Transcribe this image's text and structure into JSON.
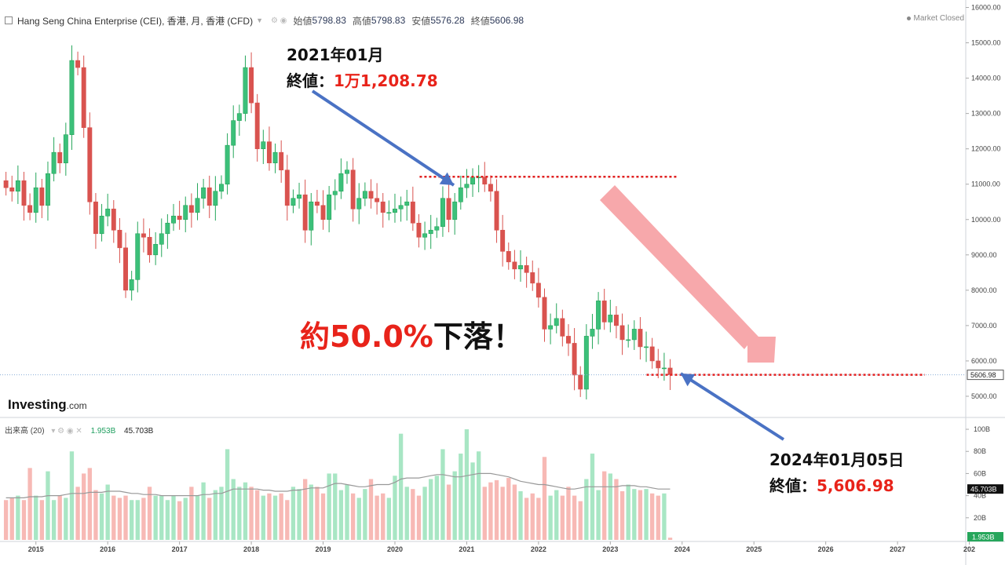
{
  "header": {
    "title": "Hang Seng China Enterprise (CEI), 香港, 月, 香港 (CFD)",
    "open_label": "始値",
    "open_value": "5798.83",
    "high_label": "高値",
    "high_value": "5798.83",
    "low_label": "安値",
    "low_value": "5576.28",
    "close_label": "終値",
    "close_value": "5606.98",
    "market_status": "Market Closed"
  },
  "logo": {
    "text": "Investing",
    "suffix": ".com"
  },
  "volume_header": {
    "label": "出来高 (20)",
    "value_last": "1.953B",
    "value_ma": "45.703B"
  },
  "annotations": {
    "top_date": "2021年01月",
    "top_close_label": "終値：",
    "top_close_value": "1万1,208.78",
    "bottom_date": "2024年01月05日",
    "bottom_close_label": "終値：",
    "bottom_close_value": "5,606.98",
    "drop_prefix": "約",
    "drop_value": "50.0%",
    "drop_suffix": "下落！"
  },
  "colors": {
    "up": "#26a65b",
    "up_fill": "#3cc07a",
    "down": "#d9534f",
    "vol_up": "#a8e6c4",
    "vol_down": "#f7b9b5",
    "arrow_blue": "#4a72c4",
    "arrow_pink": "#f7a3a6",
    "dotted_red": "#e02020",
    "price_label_bg": "#ffffff",
    "last_price_line": "#8aaed8"
  },
  "chart_data": {
    "type": "candlestick",
    "title": "Hang Seng China Enterprise (CEI), 香港, 月, 香港 (CFD)",
    "price_axis": {
      "ticks": [
        "5000.00",
        "6000.00",
        "7000.00",
        "8000.00",
        "9000.00",
        "10000.00",
        "11000.00",
        "12000.00",
        "13000.00",
        "14000.00",
        "15000.00",
        "16000.00"
      ],
      "range": [
        4400,
        16100
      ],
      "last_price_label": "5606.98"
    },
    "volume_axis": {
      "ticks": [
        "20B",
        "40B",
        "60B",
        "80B",
        "100B"
      ],
      "range": [
        0,
        105
      ],
      "ma_label": "45.703B",
      "last_label": "1.953B"
    },
    "x_axis": {
      "ticks": [
        "2015",
        "2016",
        "2017",
        "2018",
        "2019",
        "2020",
        "2021",
        "2022",
        "2023",
        "2024",
        "2025",
        "2026",
        "2027",
        "202"
      ],
      "start_date": "2014-07",
      "range_years": [
        2014.5,
        2027.95
      ]
    },
    "series_close": [
      10900,
      10800,
      11100,
      10400,
      10200,
      10900,
      10400,
      11300,
      11900,
      11600,
      12400,
      14500,
      14300,
      12600,
      10500,
      9600,
      10100,
      10300,
      9700,
      9200,
      8000,
      8300,
      9600,
      9500,
      9000,
      9300,
      9600,
      9900,
      10100,
      10000,
      10400,
      10200,
      10600,
      10900,
      10400,
      10800,
      11000,
      12100,
      12800,
      13000,
      14300,
      13300,
      12000,
      12200,
      11600,
      11900,
      11400,
      10400,
      10600,
      10700,
      9700,
      10500,
      10400,
      10000,
      10700,
      10800,
      11300,
      11400,
      10300,
      10600,
      10800,
      10600,
      10500,
      10200,
      10200,
      10300,
      10400,
      10500,
      9900,
      9500,
      9600,
      9700,
      9800,
      10600,
      10000,
      10500,
      10900,
      11000,
      11200,
      11200,
      11000,
      10800,
      9700,
      9100,
      8800,
      8600,
      8700,
      8500,
      8200,
      7800,
      6900,
      7000,
      7200,
      6700,
      6500,
      5600,
      5200,
      6700,
      6900,
      7700,
      7100,
      7300,
      7000,
      6600,
      6600,
      6900,
      6400,
      6400,
      6000,
      5800,
      5800,
      5607
    ],
    "volume_b": [
      36,
      38,
      40,
      36,
      65,
      40,
      36,
      62,
      36,
      40,
      38,
      80,
      48,
      60,
      65,
      45,
      42,
      50,
      40,
      38,
      40,
      36,
      36,
      38,
      48,
      40,
      40,
      36,
      40,
      35,
      38,
      48,
      40,
      52,
      38,
      45,
      48,
      82,
      55,
      48,
      52,
      48,
      45,
      40,
      42,
      40,
      42,
      36,
      48,
      46,
      55,
      50,
      48,
      42,
      60,
      60,
      45,
      50,
      42,
      38,
      46,
      55,
      40,
      42,
      38,
      58,
      96,
      48,
      46,
      40,
      48,
      55,
      58,
      82,
      50,
      62,
      78,
      100,
      70,
      80,
      48,
      52,
      54,
      48,
      56,
      50,
      44,
      38,
      42,
      38,
      75,
      40,
      45,
      40,
      48,
      40,
      35,
      55,
      78,
      45,
      62,
      60,
      55,
      44,
      50,
      46,
      45,
      46,
      42,
      40,
      42,
      2
    ],
    "volume_ma_b": [
      38,
      38,
      38,
      38,
      39,
      39,
      39,
      40,
      40,
      40,
      41,
      42,
      42,
      42,
      43,
      43,
      43,
      44,
      44,
      44,
      43,
      42,
      42,
      41,
      41,
      41,
      40,
      40,
      40,
      40,
      40,
      40,
      40,
      41,
      41,
      42,
      42,
      44,
      46,
      46,
      46,
      46,
      46,
      45,
      45,
      44,
      44,
      44,
      45,
      45,
      46,
      47,
      47,
      47,
      49,
      51,
      51,
      50,
      49,
      48,
      48,
      49,
      50,
      50,
      50,
      52,
      55,
      56,
      56,
      56,
      57,
      58,
      59,
      59,
      58,
      57,
      57,
      58,
      59,
      60,
      60,
      60,
      59,
      58,
      57,
      55,
      53,
      52,
      51,
      50,
      50,
      49,
      48,
      47,
      46,
      46,
      47,
      48,
      48,
      48,
      48,
      48,
      48,
      49,
      49,
      49,
      48,
      48,
      47,
      46,
      46,
      46
    ]
  }
}
